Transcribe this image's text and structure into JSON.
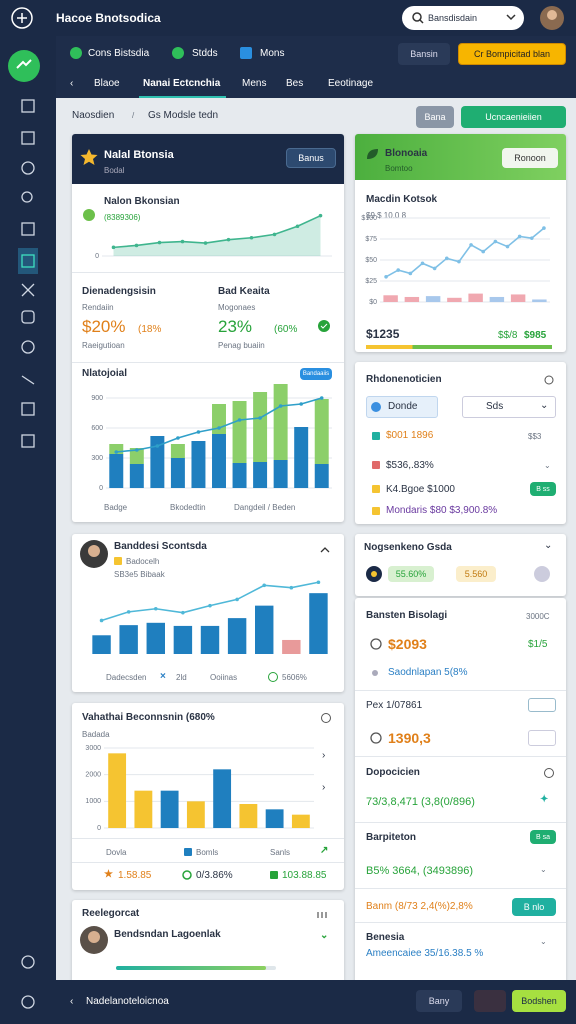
{
  "topbar": {
    "title": "Hacoe Bnotsodica",
    "search": "Bansdisdain"
  },
  "tabs": [
    "Cons Bistsdia",
    "Stdds",
    "Mons"
  ],
  "top_buttons": [
    "Bansin",
    "Cr Bompicitad blan"
  ],
  "nav": [
    "Blaoe",
    "Nanai Ectcnchia",
    "Mens",
    "Bes",
    "Eeotinage"
  ],
  "breadcrumb": [
    "Naosdien",
    "Gs Modsle tedn"
  ],
  "actions": [
    "Bana",
    "Ucncaenieiien"
  ],
  "card1": {
    "title": "Nalal Btonsia",
    "subtitle": "Bodal",
    "button": "Banus",
    "line_title": "Nalon Bkonsian",
    "line_sub": "(8389306)",
    "line_chart": {
      "type": "area",
      "ylim": [
        0,
        100
      ],
      "yticks": [
        0
      ],
      "series": [
        {
          "color": "#3fb58e",
          "values": [
            18,
            22,
            28,
            30,
            27,
            34,
            38,
            45,
            62,
            84
          ]
        }
      ]
    },
    "stats": [
      {
        "label": "Dienadengsisin",
        "sub": "Rendaiin",
        "value": "$20%",
        "change": "(18%",
        "note": "Raeigutioan"
      },
      {
        "label": "Bad Keaita",
        "sub": "Mogonaes",
        "value": "23%",
        "change": "(60%",
        "note": "Penag buaiin"
      }
    ],
    "bar_title": "Nlatojoial",
    "bar_tag": "Bandaaiis",
    "bar_chart": {
      "type": "bar",
      "stacked": true,
      "ylim": [
        0,
        1000
      ],
      "yticks": [
        0,
        300,
        600,
        900
      ],
      "series": [
        {
          "color": "#1f7fbf",
          "values": [
            340,
            240,
            520,
            300,
            470,
            540,
            250,
            260,
            280,
            610,
            240
          ]
        },
        {
          "color": "#8ccf6a",
          "values": [
            100,
            160,
            0,
            140,
            0,
            300,
            620,
            700,
            820,
            0,
            650
          ]
        },
        {
          "kind": "line",
          "color": "#2f9fc9",
          "values": [
            360,
            380,
            420,
            500,
            560,
            600,
            680,
            700,
            820,
            840,
            900
          ]
        }
      ]
    },
    "bar_labels": [
      "Badge",
      "Bkodedtin",
      "Dangdeil / Beden"
    ]
  },
  "card2": {
    "title": "Banddesi Scontsda",
    "subtitle": "Badocelh",
    "note": "SB3e5 Bibaak",
    "chart": {
      "type": "bar",
      "ylim": [
        0,
        1000
      ],
      "series": [
        {
          "colors": [
            "#1f7fbf",
            "#1f7fbf",
            "#1f7fbf",
            "#1f7fbf",
            "#1f7fbf",
            "#1f7fbf",
            "#1f7fbf",
            "#e89a9a",
            "#1f7fbf"
          ],
          "values": [
            240,
            370,
            400,
            360,
            360,
            460,
            620,
            180,
            780
          ]
        },
        {
          "kind": "line",
          "color": "#4fb8d8",
          "values": [
            430,
            540,
            580,
            530,
            620,
            700,
            880,
            850,
            920
          ]
        }
      ]
    },
    "legend": [
      "Dadecsden",
      "2ld",
      "Ooiinas",
      "5606%"
    ]
  },
  "card3": {
    "title": "Vahathai Beconnsnin (680%",
    "subtitle": "Badada",
    "chart": {
      "type": "bar",
      "ylim": [
        0,
        3000
      ],
      "yticks": [
        0,
        1000,
        2000,
        3000
      ],
      "series": [
        {
          "colors": [
            "#f5c431",
            "#f5c431",
            "#1f7fbf",
            "#f5c431",
            "#1f7fbf",
            "#f5c431",
            "#1f7fbf",
            "#f5c431"
          ],
          "values": [
            2800,
            1400,
            1400,
            1000,
            2200,
            900,
            700,
            500
          ]
        }
      ]
    },
    "legend": [
      "Dovla",
      "Bomls",
      "Sanls"
    ],
    "stats": [
      "1.58.85",
      "0/3.86%",
      "103.88.85"
    ]
  },
  "card4": {
    "title": "Reelegorcat",
    "name": "Bendsndan Lagoenlak"
  },
  "rcard1": {
    "title": "Blonoaia",
    "subtitle": "Bomtoo",
    "button": "Ronoon",
    "chart_title": "Macdin Kotsok",
    "chart_sub": "$9 $ 10.0 8",
    "chart": {
      "type": "line",
      "ylim": [
        0,
        100
      ],
      "yticks": [
        {
          "value": 0,
          "label": "$0"
        },
        {
          "value": 25,
          "label": "$25"
        },
        {
          "value": 50,
          "label": "$50"
        },
        {
          "value": 75,
          "label": "$75"
        },
        {
          "value": 100,
          "label": "$100"
        }
      ],
      "series": [
        {
          "kind": "bar",
          "colors": [
            "#f0a8b0",
            "#f0a8b0",
            "#a8c8ec",
            "#f0a8b0",
            "#f0a8b0",
            "#a8c8ec",
            "#f0a8b0",
            "#a8c8ec"
          ],
          "values": [
            8,
            6,
            7,
            5,
            10,
            6,
            9,
            3
          ]
        },
        {
          "color": "#7fc0e6",
          "values": [
            30,
            38,
            34,
            46,
            40,
            52,
            48,
            68,
            60,
            72,
            66,
            78,
            76,
            88
          ]
        }
      ]
    },
    "total": "$1235",
    "delta": "$$/8",
    "delta_value": "$985"
  },
  "rcard2": {
    "title": "Rhdonenoticien",
    "selects": [
      "Donde",
      "Sds"
    ],
    "rows": [
      "$001 1896",
      "$536,.83%",
      "K4.Bgoe $1000",
      "Mondaris $80 $3,900.8%"
    ],
    "row_side": "$$3",
    "tag": "B ss"
  },
  "rcard3": {
    "title": "Nogsenkeno Gsda",
    "chips": [
      "55.60%",
      "5.560"
    ]
  },
  "panel": {
    "rows": [
      {
        "title": "Bansten Bisolagi",
        "side": "3000C"
      },
      {
        "value": "$2093",
        "side": "$1/5"
      },
      {
        "value": "Saodnlapan 5(8%"
      },
      {
        "title": "Pex 1/07861"
      },
      {
        "value": "1390,3"
      },
      {
        "title": "Dopocicien"
      },
      {
        "value": "73/3,8,471 (3,8(0/896)"
      },
      {
        "title": "Barpiteton",
        "side": "B sa"
      },
      {
        "value": "B5% 3664, (3493896)"
      },
      {
        "value": "Banm (8/73 2,4(%)2,8%",
        "side": "B nlo"
      },
      {
        "title": "Benesia"
      },
      {
        "value": "Ameencaiee 35/16.38.5 %"
      }
    ]
  },
  "footer": {
    "back": "Nadelanoteloicnoa",
    "buttons": [
      "Bany",
      "Bodshen"
    ]
  }
}
